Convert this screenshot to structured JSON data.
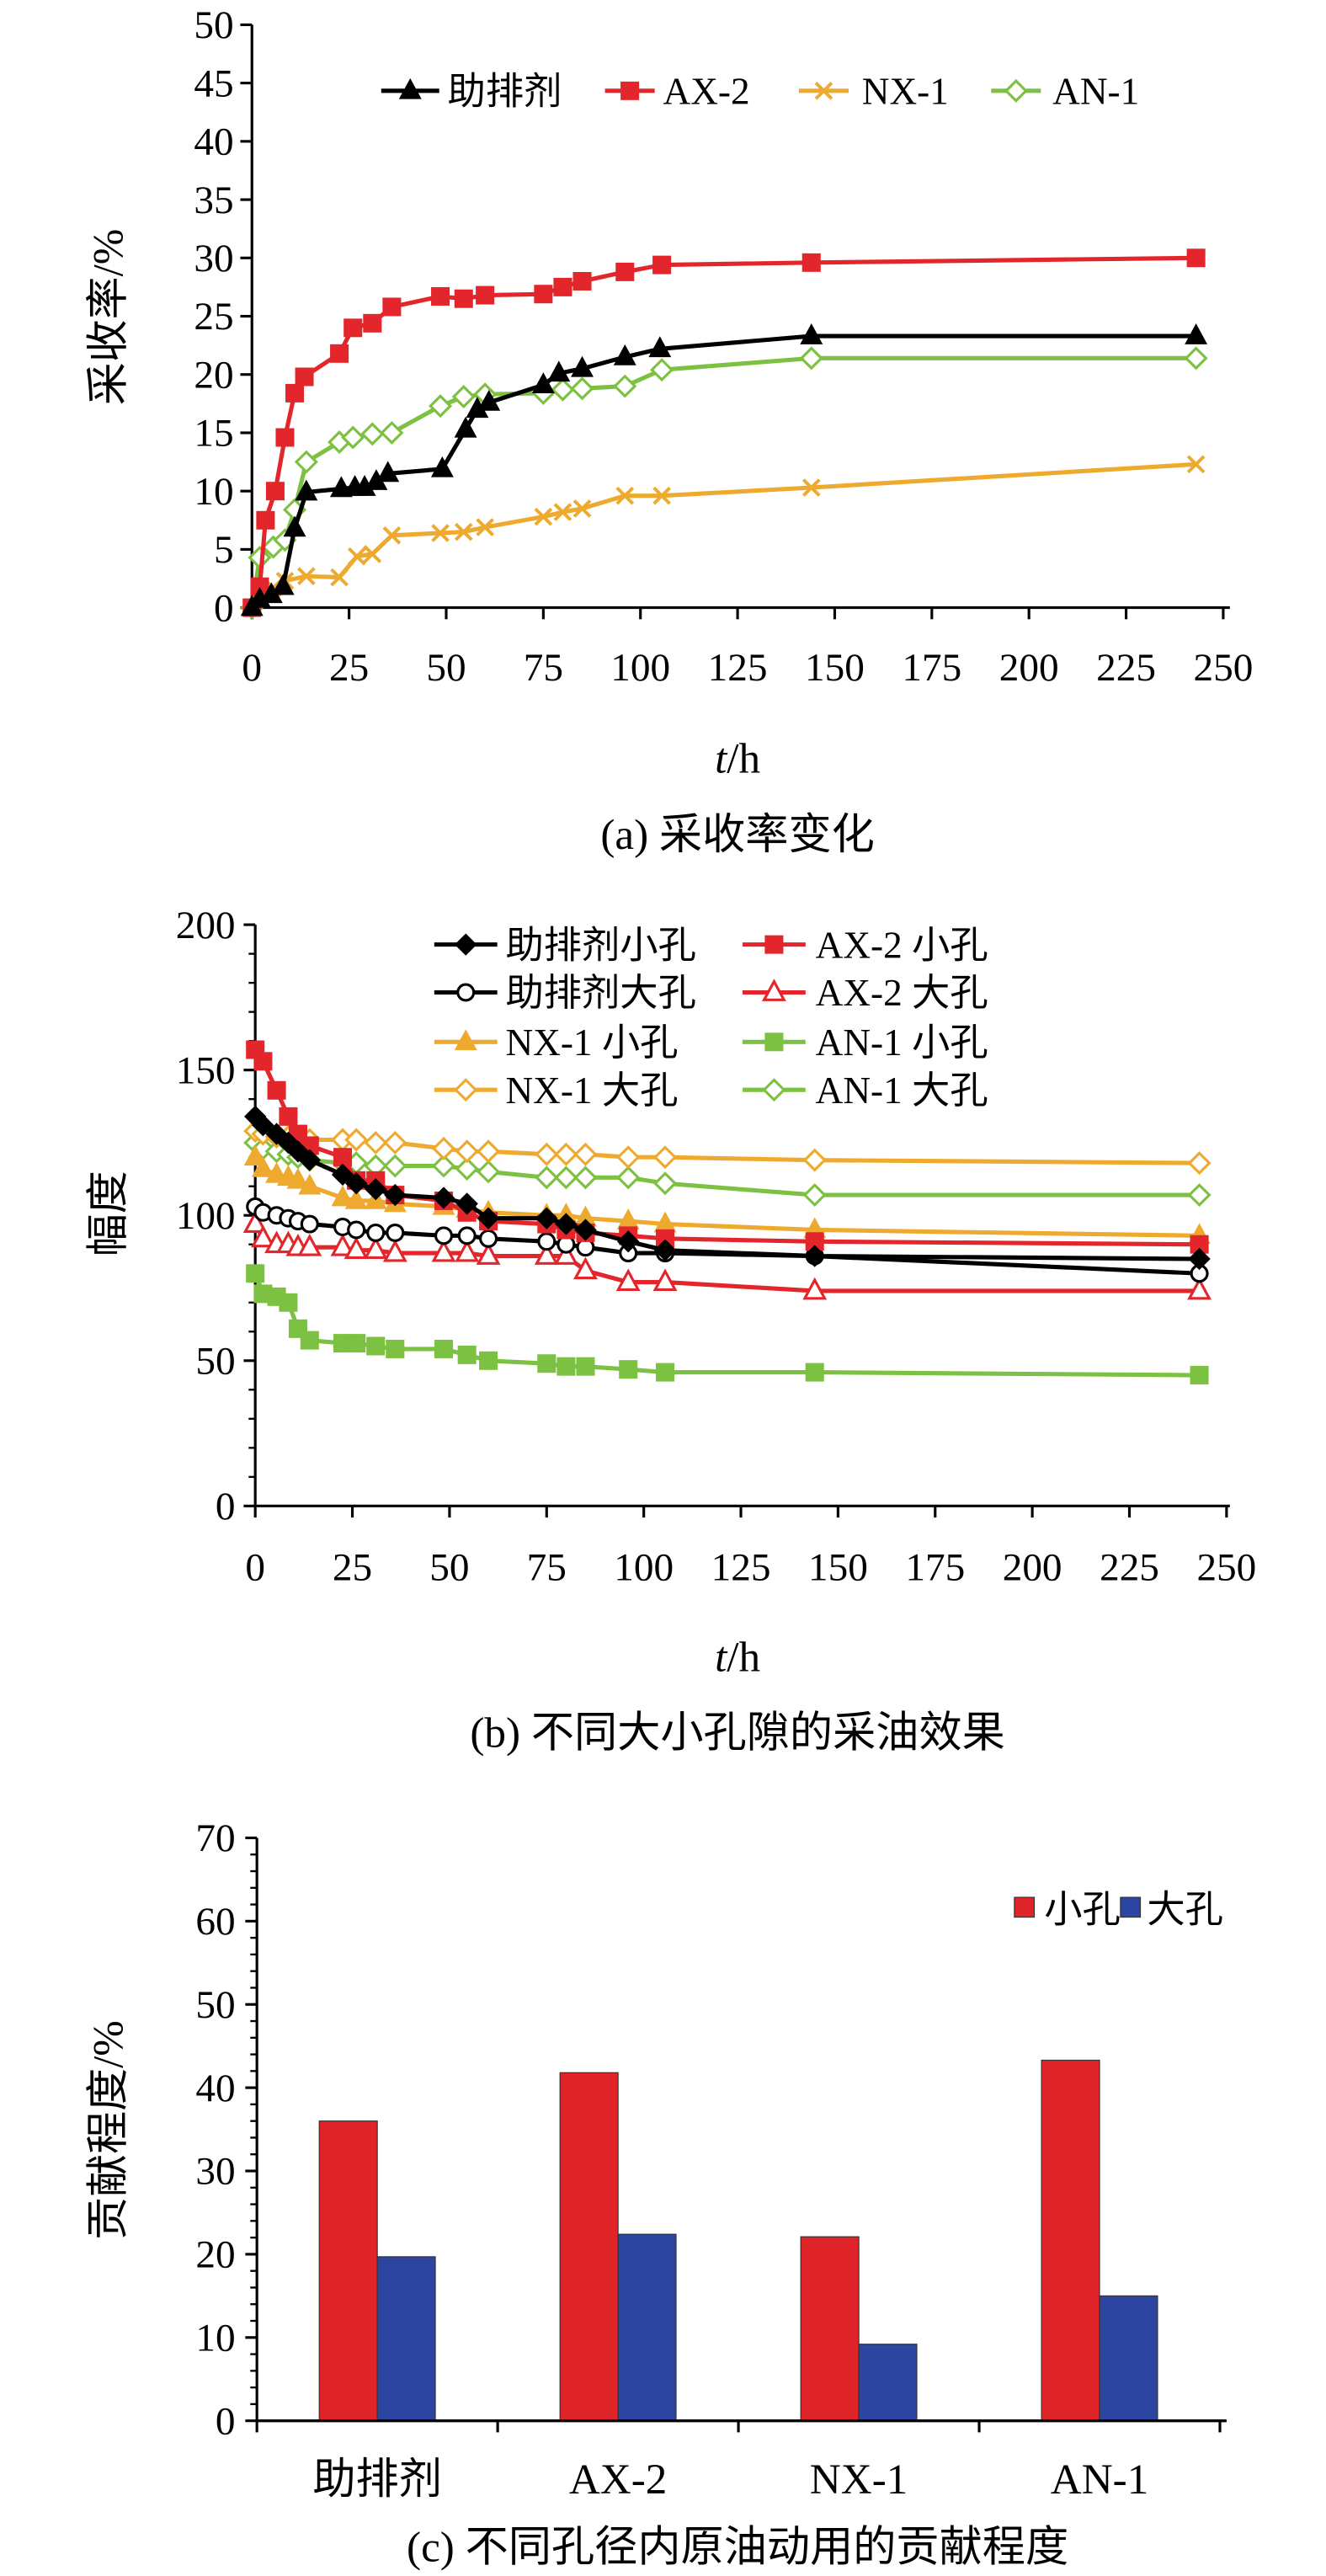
{
  "chart_data": [
    {
      "type": "line",
      "caption": "(a) 采收率变化",
      "xlabel": "t/h",
      "ylabel": "采收率/%",
      "xlim": [
        0,
        250
      ],
      "xticks": [
        0,
        25,
        50,
        75,
        100,
        125,
        150,
        175,
        200,
        225,
        250
      ],
      "ylim": [
        0,
        50
      ],
      "yticks": [
        0,
        5,
        10,
        15,
        20,
        25,
        30,
        35,
        40,
        45,
        50
      ],
      "grid": false,
      "legend": "top",
      "series": [
        {
          "name": "助排剂",
          "color": "#000000",
          "marker": "filled-triangle",
          "x": [
            0,
            2,
            5,
            8,
            11,
            14,
            23,
            26.5,
            29,
            32,
            35,
            49,
            55,
            58,
            61,
            75,
            79,
            85,
            96,
            105,
            144,
            243
          ],
          "y": [
            0,
            0.7,
            1.1,
            1.8,
            6.8,
            9.9,
            10.2,
            10.3,
            10.3,
            10.8,
            11.5,
            11.9,
            15.3,
            17.0,
            17.6,
            19.1,
            20.1,
            20.5,
            21.5,
            22.2,
            23.3,
            23.3
          ]
        },
        {
          "name": "AX-2",
          "color": "#e3262b",
          "marker": "filled-square",
          "x": [
            0,
            2,
            3.5,
            6,
            8.5,
            11,
            13.5,
            22.5,
            26,
            31,
            36,
            48.5,
            54.5,
            60,
            75,
            80,
            85,
            96,
            105.5,
            144,
            243
          ],
          "y": [
            0,
            1.8,
            7.5,
            10.0,
            14.6,
            18.4,
            19.8,
            21.8,
            24.0,
            24.4,
            25.8,
            26.7,
            26.5,
            26.8,
            26.9,
            27.5,
            28.0,
            28.8,
            29.4,
            29.6,
            30.0
          ]
        },
        {
          "name": "NX-1",
          "color": "#eeaa2e",
          "marker": "x",
          "x": [
            0,
            2,
            5.5,
            8.5,
            14,
            22.5,
            27,
            31,
            36,
            48.5,
            54.5,
            60,
            75,
            80,
            85,
            96,
            105.5,
            144,
            243
          ],
          "y": [
            0,
            1.1,
            1.7,
            2.3,
            2.7,
            2.6,
            4.4,
            4.6,
            6.2,
            6.4,
            6.5,
            6.9,
            7.8,
            8.2,
            8.5,
            9.6,
            9.6,
            10.3,
            12.3
          ]
        },
        {
          "name": "AN-1",
          "color": "#7dc142",
          "marker": "open-diamond",
          "x": [
            0,
            2,
            5.5,
            8.5,
            11,
            14,
            22.5,
            26,
            31,
            36,
            48.5,
            54.5,
            60,
            75,
            80,
            85,
            96,
            105.5,
            144,
            243
          ],
          "y": [
            0,
            4.3,
            5.2,
            5.8,
            8.4,
            12.5,
            14.2,
            14.6,
            14.9,
            15.0,
            17.3,
            18.1,
            18.3,
            18.4,
            18.7,
            18.8,
            19.0,
            20.4,
            21.4,
            21.4
          ]
        }
      ]
    },
    {
      "type": "line",
      "caption": "(b) 不同大小孔隙的采油效果",
      "xlabel": "t/h",
      "ylabel": "幅度",
      "xlim": [
        0,
        250
      ],
      "xticks": [
        0,
        25,
        50,
        75,
        100,
        125,
        150,
        175,
        200,
        225,
        250
      ],
      "ylim": [
        0,
        200
      ],
      "yticks": [
        0,
        50,
        100,
        150,
        200
      ],
      "grid": false,
      "legend": "top-right",
      "x": [
        0,
        2,
        5.5,
        8.5,
        11,
        14,
        22.5,
        26,
        31,
        36,
        48.5,
        54.5,
        60,
        75,
        80,
        85,
        96,
        105.5,
        144,
        243
      ],
      "series": [
        {
          "name": "助排剂小孔",
          "color": "#000000",
          "marker": "filled-diamond",
          "y": [
            134,
            131,
            128,
            125,
            122,
            119,
            114,
            111,
            109,
            107,
            106,
            104,
            99,
            99,
            97,
            95,
            91,
            88,
            86,
            85
          ]
        },
        {
          "name": "AX-2 小孔",
          "color": "#e3262b",
          "marker": "filled-square",
          "y": [
            157,
            153,
            143,
            134,
            128,
            124,
            120,
            112,
            112,
            107,
            105,
            101,
            98,
            97,
            95,
            94,
            93,
            92,
            91,
            90
          ]
        },
        {
          "name": "助排剂大孔",
          "color": "#000000",
          "marker": "open-circle",
          "y": [
            103,
            101,
            100,
            99,
            98,
            97,
            96,
            95,
            94,
            94,
            93,
            93,
            92,
            91,
            90,
            89,
            87,
            87,
            86,
            80
          ]
        },
        {
          "name": "AX-2 大孔",
          "color": "#e3262b",
          "marker": "open-triangle",
          "y": [
            97,
            92,
            90,
            90,
            89,
            89,
            89,
            88,
            88,
            87,
            87,
            87,
            86,
            86,
            86,
            81,
            77,
            77,
            74,
            74
          ]
        },
        {
          "name": "NX-1 小孔",
          "color": "#eeaa2e",
          "marker": "filled-triangle",
          "y": [
            120,
            116,
            114,
            113,
            112,
            110,
            106,
            105,
            105,
            104,
            103,
            102,
            101,
            100,
            100,
            99,
            98,
            97,
            95,
            93
          ]
        },
        {
          "name": "AN-1 小孔",
          "color": "#7dc142",
          "marker": "filled-square",
          "y": [
            80,
            73,
            72,
            70,
            61,
            57,
            56,
            56,
            55,
            54,
            54,
            52,
            50,
            49,
            48,
            48,
            47,
            46,
            46,
            45
          ]
        },
        {
          "name": "NX-1 大孔",
          "color": "#eeaa2e",
          "marker": "open-diamond",
          "y": [
            129,
            128,
            127,
            127,
            126,
            126,
            126,
            126,
            125,
            125,
            123,
            122,
            122,
            121,
            121,
            121,
            120,
            120,
            119,
            118
          ]
        },
        {
          "name": "AN-1 大孔",
          "color": "#7dc142",
          "marker": "open-diamond",
          "y": [
            125,
            123,
            122,
            121,
            120,
            119,
            118,
            118,
            117,
            117,
            117,
            116,
            115,
            113,
            113,
            113,
            113,
            111,
            107,
            107
          ]
        }
      ]
    },
    {
      "type": "bar",
      "caption": "(c) 不同孔径内原油动用的贡献程度",
      "ylabel": "贡献程度/%",
      "categories": [
        "助排剂",
        "AX-2",
        "NX-1",
        "AN-1"
      ],
      "ylim": [
        0,
        70
      ],
      "yticks": [
        0,
        10,
        20,
        30,
        40,
        50,
        60,
        70
      ],
      "grid": false,
      "legend": "top-right",
      "series": [
        {
          "name": "小孔",
          "color": "#e0252a",
          "values": [
            36.0,
            41.8,
            22.1,
            43.3
          ]
        },
        {
          "name": "大孔",
          "color": "#2b45a0",
          "values": [
            19.7,
            22.4,
            9.2,
            15.0
          ]
        }
      ]
    }
  ]
}
